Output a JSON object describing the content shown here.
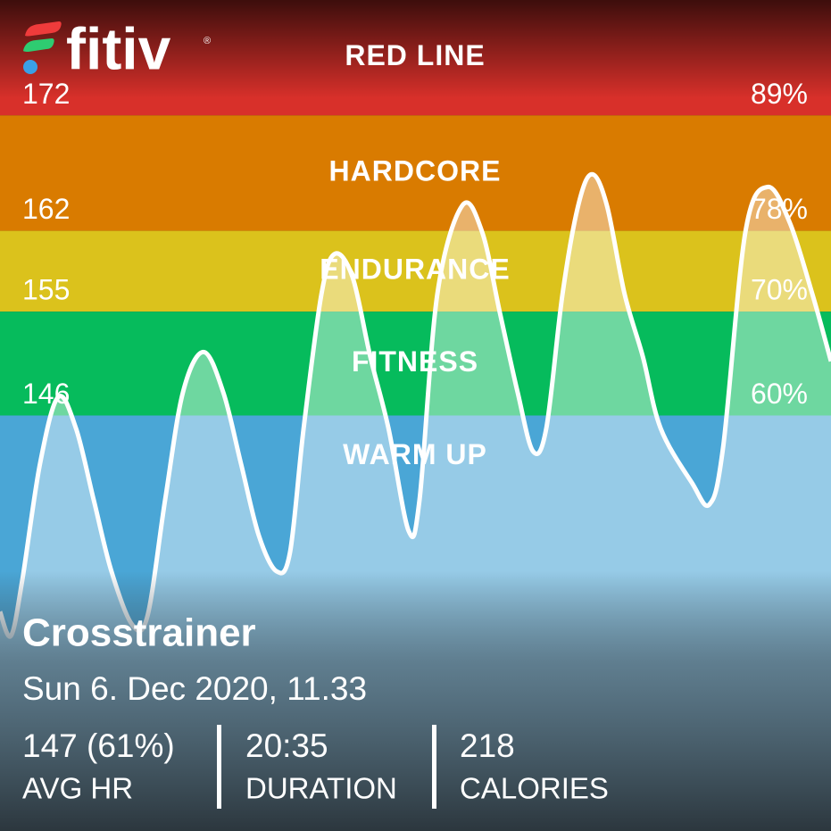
{
  "logo": {
    "text": "fitiv",
    "mark": "®"
  },
  "chart_data": {
    "type": "line",
    "xlim": [
      0,
      20.58
    ],
    "ylim": [
      110,
      182
    ],
    "zones": [
      {
        "name": "RED LINE",
        "bpm": 172,
        "percent": "89%",
        "color": "#d8302a"
      },
      {
        "name": "HARDCORE",
        "bpm": 162,
        "percent": "78%",
        "color": "#d97b00"
      },
      {
        "name": "ENDURANCE",
        "bpm": 155,
        "percent": "70%",
        "color": "#dbc21c"
      },
      {
        "name": "FITNESS",
        "bpm": 146,
        "percent": "60%",
        "color": "#06bb5c"
      },
      {
        "name": "WARM UP",
        "color": "#4aa6d6"
      }
    ],
    "series": [
      {
        "color": "#ffffff",
        "x": [
          0,
          0.27,
          0.55,
          0.99,
          1.44,
          1.88,
          2.32,
          2.76,
          3.27,
          3.65,
          4.09,
          4.53,
          5.04,
          5.53,
          5.97,
          6.41,
          6.85,
          7.18,
          7.52,
          7.96,
          8.29,
          8.73,
          9.17,
          9.62,
          10.12,
          10.39,
          10.83,
          11.45,
          11.94,
          12.38,
          12.82,
          13.2,
          13.53,
          13.93,
          14.32,
          14.66,
          15.03,
          15.47,
          15.92,
          16.36,
          17.13,
          17.57,
          17.91,
          18.46,
          19.01,
          19.56,
          20.12,
          20.58
        ],
        "values": [
          129.0,
          126.9,
          131.7,
          141.8,
          147.6,
          144.9,
          138.7,
          132.5,
          127.9,
          128.6,
          138.7,
          148.0,
          151.5,
          148.0,
          141.8,
          135.6,
          132.5,
          134.1,
          144.9,
          156.5,
          160.0,
          158.0,
          151.1,
          144.9,
          136.0,
          138.7,
          156.5,
          164.2,
          161.9,
          154.9,
          148.0,
          142.9,
          144.9,
          156.5,
          164.2,
          166.9,
          164.2,
          156.5,
          151.1,
          144.9,
          140.2,
          138.3,
          143.3,
          161.9,
          165.8,
          162.7,
          156.5,
          150.7
        ]
      }
    ]
  },
  "workout": {
    "title": "Crosstrainer",
    "date": "Sun 6. Dec 2020, 11.33",
    "stats": [
      {
        "value": "147 (61%)",
        "label": "AVG HR"
      },
      {
        "value": "20:35",
        "label": "DURATION"
      },
      {
        "value": "218",
        "label": "CALORIES"
      }
    ]
  }
}
